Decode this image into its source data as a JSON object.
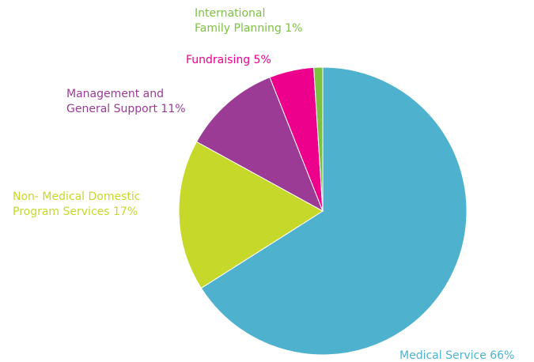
{
  "chart_data": {
    "type": "pie",
    "categories": [
      [
        "Medical Service  66%"
      ],
      [
        "Non- Medical Domestic",
        "Program Services 17%"
      ],
      [
        "Management and",
        "General Support 11%"
      ],
      [
        "Fundraising 5%"
      ],
      [
        "International",
        "Family Planning 1%"
      ]
    ],
    "values": [
      66,
      17,
      11,
      5,
      1
    ],
    "colors": [
      "#4eb2cf",
      "#c6d92b",
      "#9b3b95",
      "#ec008c",
      "#7dc142"
    ],
    "start_angle": 0,
    "direction": "clockwise"
  }
}
